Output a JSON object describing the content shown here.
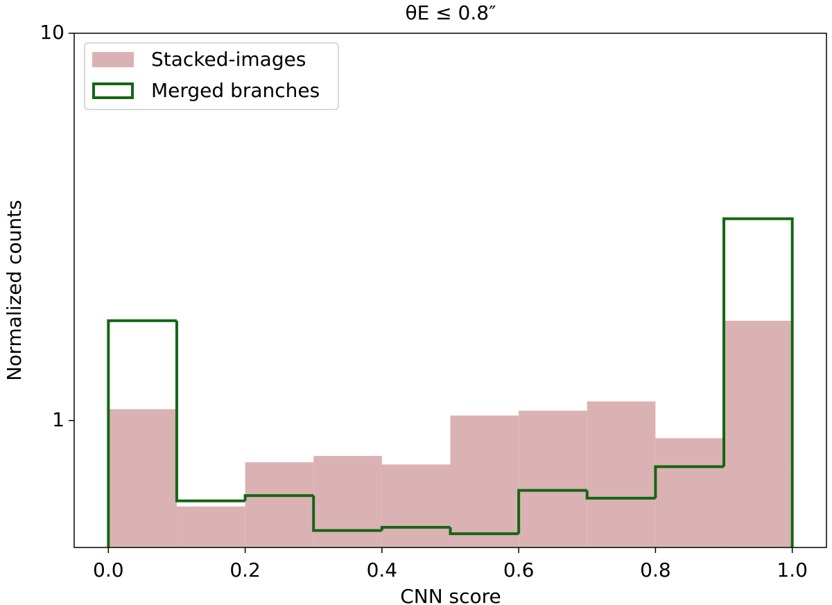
{
  "chart_data": {
    "type": "histogram",
    "title": "θE ≤ 0.8″",
    "xlabel": "CNN score",
    "ylabel": "Normalized counts",
    "bins": [
      0.0,
      0.1,
      0.2,
      0.3,
      0.4,
      0.5,
      0.6,
      0.7,
      0.8,
      0.9,
      1.0
    ],
    "series": [
      {
        "name": "Stacked-images",
        "color": "#dbb2b3",
        "histtype": "bar",
        "values": [
          1.07,
          0.6,
          0.78,
          0.81,
          0.77,
          1.03,
          1.06,
          1.12,
          0.9,
          1.81
        ]
      },
      {
        "name": "Merged branches",
        "color": "#146614",
        "histtype": "step",
        "values": [
          1.81,
          0.62,
          0.64,
          0.52,
          0.53,
          0.51,
          0.66,
          0.63,
          0.76,
          3.32
        ]
      }
    ],
    "xlim": [
      -0.05,
      1.05
    ],
    "ylim": [
      0.47,
      10
    ],
    "log_y": true,
    "xticks": [
      {
        "value": 0,
        "label": "0.0"
      },
      0.2,
      0.4,
      0.6,
      0.8,
      {
        "value": 1,
        "label": "1.0"
      }
    ],
    "yticks": [
      1,
      10
    ],
    "legend": "upper left"
  }
}
